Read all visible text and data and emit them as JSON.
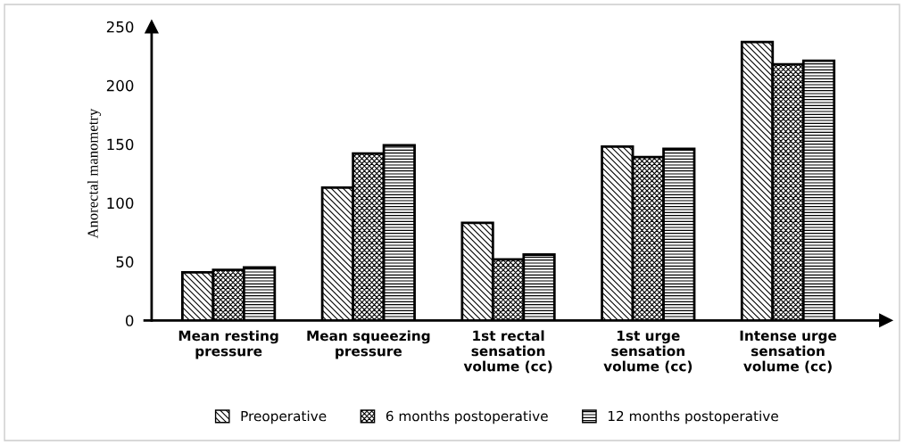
{
  "chart_data": {
    "type": "bar",
    "ylabel": "Anorectal manometry",
    "categories": [
      "Mean resting\npressure",
      "Mean squeezing\npressure",
      "1st rectal\nsensation\nvolume (cc)",
      "1st urge\nsensation\nvolume (cc)",
      "Intense urge\nsensation\nvolume (cc)"
    ],
    "series": [
      {
        "name": "Preoperative",
        "color": "#000000",
        "values": [
          41,
          113,
          83,
          148,
          237
        ]
      },
      {
        "name": "6 months postoperative",
        "color": "#000000",
        "values": [
          43,
          142,
          52,
          139,
          218
        ]
      },
      {
        "name": "12 months postoperative",
        "color": "#000000",
        "values": [
          45,
          149,
          56,
          146,
          221
        ]
      }
    ],
    "ylim": [
      0,
      250
    ],
    "yticks": [
      0,
      50,
      100,
      150,
      200,
      250
    ],
    "grid": false,
    "legend": "bottom"
  }
}
